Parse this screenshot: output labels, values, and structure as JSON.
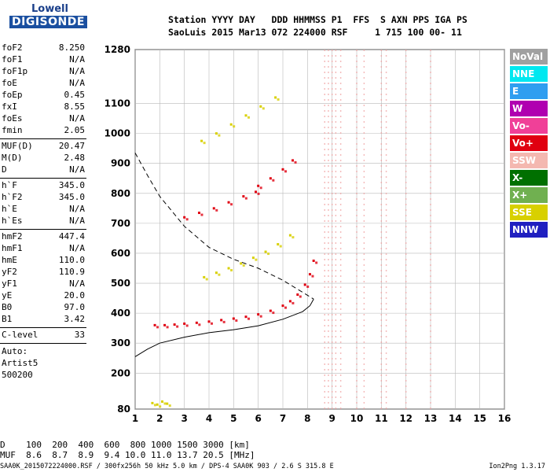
{
  "logo": {
    "line1": "Lowell",
    "line2": "DIGISONDE"
  },
  "header": {
    "line1": "Station YYYY DAY   DDD HHMMSS P1  FFS  S AXN PPS IGA PS",
    "line2": "SaoLuis 2015 Mar13 072 224000 RSF     1 715 100 00- 11"
  },
  "params": [
    [
      {
        "k": "foF2",
        "v": "8.250"
      },
      {
        "k": "foF1",
        "v": "N/A"
      },
      {
        "k": "foF1p",
        "v": "N/A"
      },
      {
        "k": "foE",
        "v": "N/A"
      },
      {
        "k": "foEp",
        "v": "0.45"
      },
      {
        "k": "fxI",
        "v": "8.55"
      },
      {
        "k": "foEs",
        "v": "N/A"
      },
      {
        "k": "fmin",
        "v": "2.05"
      }
    ],
    [
      {
        "k": "MUF(D)",
        "v": "20.47"
      },
      {
        "k": "M(D)",
        "v": "2.48"
      },
      {
        "k": "D",
        "v": "N/A"
      }
    ],
    [
      {
        "k": "h`F",
        "v": "345.0"
      },
      {
        "k": "h`F2",
        "v": "345.0"
      },
      {
        "k": "h`E",
        "v": "N/A"
      },
      {
        "k": "h`Es",
        "v": "N/A"
      }
    ],
    [
      {
        "k": "hmF2",
        "v": "447.4"
      },
      {
        "k": "hmF1",
        "v": "N/A"
      },
      {
        "k": "hmE",
        "v": "110.0"
      },
      {
        "k": "yF2",
        "v": "110.9"
      },
      {
        "k": "yF1",
        "v": "N/A"
      },
      {
        "k": "yE",
        "v": "20.0"
      },
      {
        "k": "B0",
        "v": "97.0"
      },
      {
        "k": "B1",
        "v": "3.42"
      }
    ],
    [
      {
        "k": "C-level",
        "v": "33"
      }
    ]
  ],
  "auto": [
    "Auto:",
    "Artist5",
    "500200"
  ],
  "legend": [
    {
      "label": "NoVal",
      "color": "#a0a0a0"
    },
    {
      "label": "NNE",
      "color": "#00e8f0"
    },
    {
      "label": "E",
      "color": "#2f9ef0"
    },
    {
      "label": "W",
      "color": "#b000b0"
    },
    {
      "label": "Vo-",
      "color": "#f04098"
    },
    {
      "label": "Vo+",
      "color": "#e00010"
    },
    {
      "label": "SSW",
      "color": "#f4b8b0"
    },
    {
      "label": "X-",
      "color": "#007000"
    },
    {
      "label": "X+",
      "color": "#70b050"
    },
    {
      "label": "SSE",
      "color": "#d8d000"
    },
    {
      "label": "NNW",
      "color": "#2020c0"
    }
  ],
  "bottom": {
    "d_line": "D    100  200  400  600  800 1000 1500 3000 [km]",
    "muf_line": "MUF  8.6  8.7  8.9  9.4 10.0 11.0 13.7 20.5 [MHz]"
  },
  "footer": {
    "left": "SAA0K_2015072224000.RSF / 300fx256h 50 kHz 5.0 km / DPS-4 SAA0K 903 / 2.6 S 315.8 E",
    "right": "Ion2Png 1.3.17"
  },
  "chart_data": {
    "type": "scatter",
    "xlabel": "",
    "ylabel": "",
    "xlim": [
      1,
      16
    ],
    "ylim": [
      80,
      1280
    ],
    "xticks": [
      1,
      2,
      3,
      4,
      5,
      6,
      7,
      8,
      9,
      10,
      11,
      12,
      13,
      14,
      15,
      16
    ],
    "yticks": [
      80,
      200,
      300,
      400,
      500,
      600,
      700,
      800,
      900,
      1000,
      1100,
      1280
    ],
    "grid": true,
    "series": [
      {
        "color": "#e00010",
        "points": [
          [
            1.8,
            360
          ],
          [
            2.2,
            360
          ],
          [
            2.6,
            362
          ],
          [
            3.0,
            365
          ],
          [
            3.5,
            368
          ],
          [
            4.0,
            372
          ],
          [
            4.5,
            377
          ],
          [
            5.0,
            382
          ],
          [
            5.5,
            388
          ],
          [
            6.0,
            396
          ],
          [
            6.5,
            408
          ],
          [
            7.0,
            425
          ],
          [
            7.3,
            440
          ],
          [
            7.6,
            462
          ],
          [
            7.9,
            495
          ],
          [
            8.1,
            530
          ],
          [
            8.25,
            575
          ]
        ]
      },
      {
        "color": "#d8d000",
        "points": [
          [
            3.8,
            520
          ],
          [
            4.3,
            535
          ],
          [
            4.8,
            550
          ],
          [
            5.3,
            566
          ],
          [
            5.8,
            585
          ],
          [
            6.3,
            605
          ],
          [
            6.8,
            630
          ],
          [
            7.3,
            660
          ]
        ]
      },
      {
        "color": "#d8d000",
        "points": [
          [
            3.7,
            975
          ],
          [
            4.3,
            1000
          ],
          [
            4.9,
            1030
          ],
          [
            5.5,
            1060
          ],
          [
            6.1,
            1090
          ],
          [
            6.7,
            1120
          ]
        ]
      },
      {
        "color": "#e00010",
        "points": [
          [
            3.0,
            720
          ],
          [
            3.6,
            735
          ],
          [
            4.2,
            750
          ],
          [
            4.8,
            770
          ],
          [
            5.4,
            790
          ],
          [
            5.9,
            805
          ]
        ]
      },
      {
        "color": "#e00010",
        "points": [
          [
            6.0,
            825
          ],
          [
            6.5,
            850
          ],
          [
            7.0,
            880
          ],
          [
            7.4,
            910
          ]
        ]
      },
      {
        "color": "#d8d000",
        "points": [
          [
            1.7,
            100
          ],
          [
            1.9,
            95
          ],
          [
            2.1,
            105
          ],
          [
            2.3,
            98
          ]
        ]
      }
    ],
    "profile_curve": [
      [
        1.0,
        255
      ],
      [
        1.5,
        280
      ],
      [
        2.0,
        300
      ],
      [
        3.0,
        320
      ],
      [
        4.0,
        335
      ],
      [
        5.0,
        345
      ],
      [
        6.0,
        358
      ],
      [
        7.0,
        380
      ],
      [
        7.8,
        405
      ],
      [
        8.1,
        425
      ],
      [
        8.25,
        447
      ]
    ],
    "dashed_curve": [
      [
        1.0,
        935
      ],
      [
        1.5,
        860
      ],
      [
        2.0,
        790
      ],
      [
        3.0,
        690
      ],
      [
        4.0,
        620
      ],
      [
        5.0,
        580
      ],
      [
        6.0,
        550
      ],
      [
        7.0,
        510
      ],
      [
        7.5,
        485
      ],
      [
        8.0,
        460
      ],
      [
        8.25,
        447
      ]
    ]
  }
}
